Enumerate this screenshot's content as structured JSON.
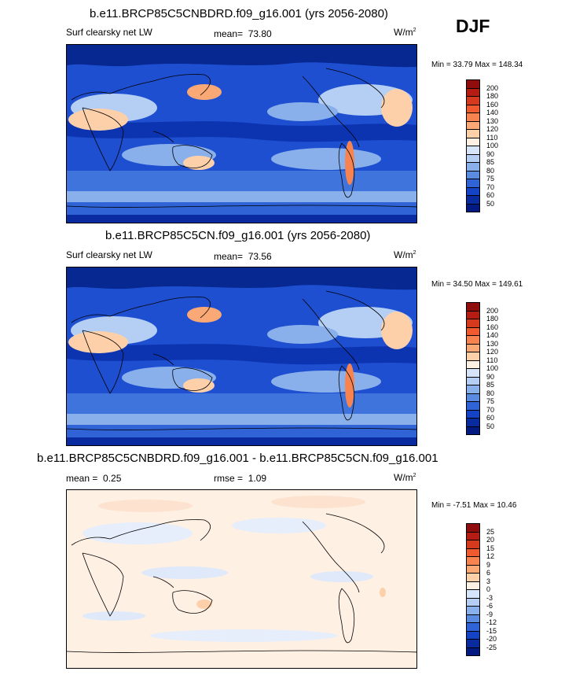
{
  "season": "DJF",
  "panels": [
    {
      "title": "b.e11.BRCP85C5CNBDRD.f09_g16.001 (yrs 2056-2080)",
      "variable": "Surf clearsky net LW",
      "mean_label": "mean=",
      "mean_value": "73.80",
      "units": "W/m",
      "units_exp": "2",
      "minmax": "Min =  33.79 Max = 148.34",
      "levels": [
        "200",
        "180",
        "160",
        "140",
        "130",
        "120",
        "110",
        "100",
        "90",
        "85",
        "80",
        "75",
        "70",
        "60",
        "50"
      ],
      "colors": [
        "#8f0d0d",
        "#b51c14",
        "#d63a1e",
        "#ef5a2f",
        "#f78450",
        "#fba877",
        "#fdd0aa",
        "#fff0e4",
        "#d7e5fa",
        "#b5cef4",
        "#8ab0ec",
        "#5b8be0",
        "#2f63d6",
        "#1543c5",
        "#0a2aa0",
        "#031a82"
      ]
    },
    {
      "title": "b.e11.BRCP85C5CN.f09_g16.001 (yrs 2056-2080)",
      "variable": "Surf clearsky net LW",
      "mean_label": "mean=",
      "mean_value": "73.56",
      "units": "W/m",
      "units_exp": "2",
      "minmax": "Min =  34.50 Max = 149.61",
      "levels": [
        "200",
        "180",
        "160",
        "140",
        "130",
        "120",
        "110",
        "100",
        "90",
        "85",
        "80",
        "75",
        "70",
        "60",
        "50"
      ],
      "colors": [
        "#8f0d0d",
        "#b51c14",
        "#d63a1e",
        "#ef5a2f",
        "#f78450",
        "#fba877",
        "#fdd0aa",
        "#fff0e4",
        "#d7e5fa",
        "#b5cef4",
        "#8ab0ec",
        "#5b8be0",
        "#2f63d6",
        "#1543c5",
        "#0a2aa0",
        "#031a82"
      ]
    },
    {
      "title": "b.e11.BRCP85C5CNBDRD.f09_g16.001 - b.e11.BRCP85C5CN.f09_g16.001",
      "mean_label": "mean =",
      "mean_value": "0.25",
      "rmse_label": "rmse =",
      "rmse_value": "1.09",
      "units": "W/m",
      "units_exp": "2",
      "minmax": "Min =  -7.51 Max =  10.46",
      "levels": [
        "25",
        "20",
        "15",
        "12",
        "9",
        "6",
        "3",
        "0",
        "-3",
        "-6",
        "-9",
        "-12",
        "-15",
        "-20",
        "-25"
      ],
      "colors": [
        "#8f0d0d",
        "#b51c14",
        "#d63a1e",
        "#ef5a2f",
        "#f78450",
        "#fba877",
        "#fdd0aa",
        "#fff0e4",
        "#d7e5fa",
        "#b5cef4",
        "#8ab0ec",
        "#5b8be0",
        "#2f63d6",
        "#1543c5",
        "#0a2aa0",
        "#031a82"
      ]
    }
  ]
}
